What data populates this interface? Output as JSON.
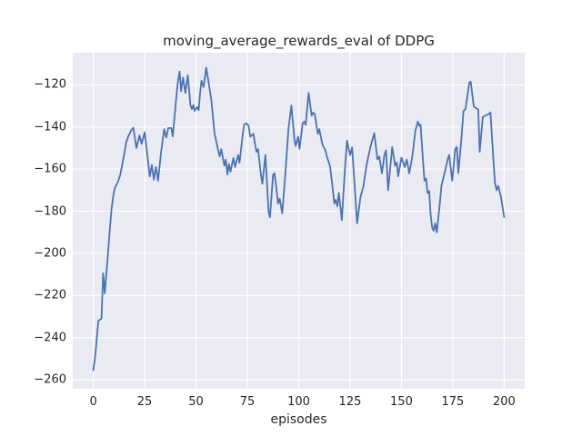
{
  "figure": {
    "title": "moving_average_rewards_eval of DDPG",
    "xlabel": "episodes",
    "ylabel": "moving_average_rewards_eval"
  },
  "chart_data": {
    "type": "line",
    "title": "moving_average_rewards_eval of DDPG",
    "xlabel": "episodes",
    "ylabel": "moving_average_rewards_eval",
    "xlim": [
      -10,
      210
    ],
    "ylim": [
      -264.3,
      -104.7
    ],
    "x_ticks": [
      0,
      25,
      50,
      75,
      100,
      125,
      150,
      175,
      200
    ],
    "y_ticks": [
      -120,
      -140,
      -160,
      -180,
      -200,
      -220,
      -240,
      -260
    ],
    "grid": true,
    "legend": false,
    "style": "seaborn-darkgrid",
    "colors": {
      "line": "#4C72B0",
      "plot_background": "#EAEAF2",
      "figure_background": "#FFFFFF",
      "gridline": "#FFFFFF",
      "text": "#262626"
    },
    "series": [
      {
        "name": "moving_average_rewards_eval",
        "points": [
          [
            0,
            -255.5
          ],
          [
            1,
            -248
          ],
          [
            2,
            -237
          ],
          [
            2.5,
            -232
          ],
          [
            4,
            -231
          ],
          [
            4.8,
            -209.5
          ],
          [
            5.6,
            -219
          ],
          [
            7,
            -202
          ],
          [
            8,
            -189
          ],
          [
            9,
            -178
          ],
          [
            10,
            -171
          ],
          [
            10.5,
            -169
          ],
          [
            12,
            -166
          ],
          [
            13,
            -163
          ],
          [
            14,
            -158.5
          ],
          [
            15,
            -153
          ],
          [
            16,
            -147.5
          ],
          [
            17,
            -144.5
          ],
          [
            18.5,
            -141.5
          ],
          [
            19.5,
            -140.3
          ],
          [
            21,
            -150
          ],
          [
            22.5,
            -144
          ],
          [
            23.5,
            -148
          ],
          [
            25,
            -142.5
          ],
          [
            26.5,
            -155
          ],
          [
            27.5,
            -163.5
          ],
          [
            28.5,
            -158
          ],
          [
            29.5,
            -165
          ],
          [
            30.5,
            -159
          ],
          [
            31.5,
            -165.5
          ],
          [
            33,
            -152
          ],
          [
            34.5,
            -141
          ],
          [
            35.5,
            -145
          ],
          [
            36.5,
            -140.5
          ],
          [
            38,
            -140.5
          ],
          [
            38.7,
            -144.5
          ],
          [
            40,
            -130
          ],
          [
            41,
            -120
          ],
          [
            42,
            -113.6
          ],
          [
            42.7,
            -123
          ],
          [
            43.7,
            -116.5
          ],
          [
            44.8,
            -123.8
          ],
          [
            46,
            -115.4
          ],
          [
            47.3,
            -129.5
          ],
          [
            48,
            -131.5
          ],
          [
            48.7,
            -129.5
          ],
          [
            49.3,
            -132.4
          ],
          [
            50.5,
            -130.5
          ],
          [
            51.3,
            -132
          ],
          [
            52,
            -123.5
          ],
          [
            52.7,
            -118
          ],
          [
            53.7,
            -121
          ],
          [
            55,
            -111.8
          ],
          [
            56.5,
            -121
          ],
          [
            57.5,
            -127.5
          ],
          [
            59,
            -143
          ],
          [
            60,
            -147.5
          ],
          [
            61.5,
            -154
          ],
          [
            62.3,
            -150.5
          ],
          [
            63.8,
            -158.3
          ],
          [
            64.5,
            -155.5
          ],
          [
            65.3,
            -162.6
          ],
          [
            66,
            -157.6
          ],
          [
            66.8,
            -161.2
          ],
          [
            68.2,
            -154.7
          ],
          [
            69,
            -159
          ],
          [
            70.5,
            -153.3
          ],
          [
            71.2,
            -157
          ],
          [
            72.7,
            -144
          ],
          [
            73.4,
            -139
          ],
          [
            74.5,
            -138.2
          ],
          [
            75.6,
            -139.5
          ],
          [
            76.4,
            -144.6
          ],
          [
            77.9,
            -143.2
          ],
          [
            79.4,
            -151.8
          ],
          [
            80.2,
            -150.5
          ],
          [
            81.6,
            -162.6
          ],
          [
            82.3,
            -167
          ],
          [
            83.8,
            -153.3
          ],
          [
            85.3,
            -180
          ],
          [
            86,
            -182.8
          ],
          [
            87.5,
            -162.6
          ],
          [
            88.2,
            -161.9
          ],
          [
            89,
            -168.4
          ],
          [
            89.9,
            -176.3
          ],
          [
            90.7,
            -174
          ],
          [
            92,
            -181
          ],
          [
            93.5,
            -162
          ],
          [
            95,
            -141
          ],
          [
            96.4,
            -129.8
          ],
          [
            97.9,
            -146
          ],
          [
            98.5,
            -149
          ],
          [
            99.7,
            -144.6
          ],
          [
            100.4,
            -150.4
          ],
          [
            101.9,
            -138.2
          ],
          [
            102.7,
            -137.5
          ],
          [
            103.4,
            -139
          ],
          [
            104.8,
            -123.8
          ],
          [
            106.3,
            -134.6
          ],
          [
            107,
            -133.2
          ],
          [
            107.8,
            -133.8
          ],
          [
            109.3,
            -143.2
          ],
          [
            110,
            -141
          ],
          [
            111.5,
            -148.2
          ],
          [
            113,
            -151.1
          ],
          [
            113.7,
            -154
          ],
          [
            115.2,
            -158.3
          ],
          [
            116.2,
            -166.3
          ],
          [
            117.3,
            -176.3
          ],
          [
            118,
            -174.5
          ],
          [
            118.8,
            -177.7
          ],
          [
            119.5,
            -171.3
          ],
          [
            121,
            -184.2
          ],
          [
            122.5,
            -160
          ],
          [
            123.5,
            -146.5
          ],
          [
            125,
            -153.3
          ],
          [
            126,
            -149.7
          ],
          [
            128.4,
            -185.7
          ],
          [
            130,
            -173.5
          ],
          [
            131.5,
            -168
          ],
          [
            133,
            -158
          ],
          [
            135,
            -149
          ],
          [
            136.8,
            -142.9
          ],
          [
            138.3,
            -155.4
          ],
          [
            139.2,
            -154
          ],
          [
            140.5,
            -162
          ],
          [
            141.7,
            -153.3
          ],
          [
            142.5,
            -151.1
          ],
          [
            143.5,
            -170
          ],
          [
            145.5,
            -149.5
          ],
          [
            146.9,
            -158.3
          ],
          [
            147.7,
            -156.9
          ],
          [
            148.4,
            -163.4
          ],
          [
            150,
            -154.5
          ],
          [
            151.6,
            -159
          ],
          [
            152.6,
            -155.4
          ],
          [
            153.8,
            -162
          ],
          [
            155.3,
            -154
          ],
          [
            156.8,
            -141.7
          ],
          [
            158,
            -137.4
          ],
          [
            158.7,
            -139.5
          ],
          [
            159.3,
            -138.9
          ],
          [
            160.5,
            -156.2
          ],
          [
            161.2,
            -165.5
          ],
          [
            162,
            -164.5
          ],
          [
            162.7,
            -171.3
          ],
          [
            163.5,
            -170.5
          ],
          [
            164.2,
            -181.4
          ],
          [
            165,
            -187.8
          ],
          [
            165.7,
            -189.3
          ],
          [
            166.4,
            -185.7
          ],
          [
            167.2,
            -190
          ],
          [
            168.6,
            -177
          ],
          [
            169.5,
            -167.7
          ],
          [
            171,
            -161.9
          ],
          [
            172.5,
            -155.4
          ],
          [
            173.2,
            -153.3
          ],
          [
            174.7,
            -165.5
          ],
          [
            176.2,
            -150.4
          ],
          [
            177,
            -149.5
          ],
          [
            177.7,
            -161.9
          ],
          [
            179.2,
            -145.5
          ],
          [
            180.2,
            -132.4
          ],
          [
            181.2,
            -131.5
          ],
          [
            183,
            -119
          ],
          [
            183.7,
            -118.4
          ],
          [
            185.2,
            -130.2
          ],
          [
            186.2,
            -131
          ],
          [
            187.4,
            -131.7
          ],
          [
            188.1,
            -151.8
          ],
          [
            189.6,
            -135.3
          ],
          [
            191,
            -134.5
          ],
          [
            192.6,
            -133.8
          ],
          [
            193.3,
            -133.1
          ],
          [
            194.8,
            -156.2
          ],
          [
            195.5,
            -166.3
          ],
          [
            196.3,
            -170
          ],
          [
            197.1,
            -168
          ],
          [
            198.4,
            -173
          ],
          [
            200,
            -182.8
          ]
        ]
      }
    ]
  }
}
